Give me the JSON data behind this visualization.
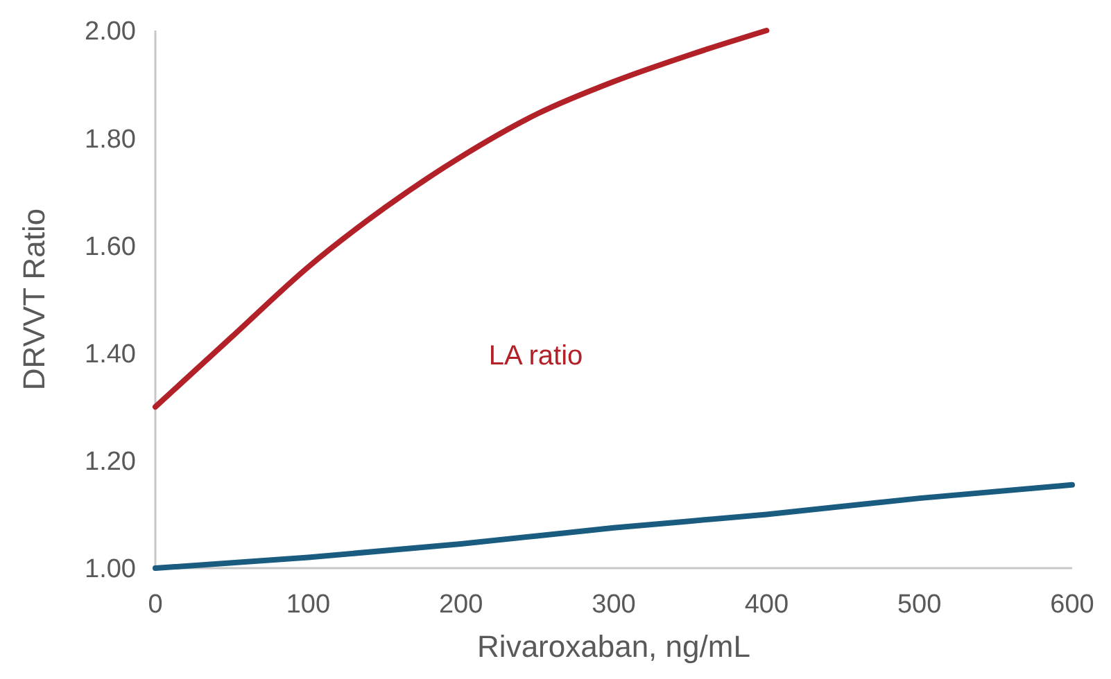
{
  "chart_data": {
    "type": "line",
    "xlabel": "Rivaroxaban, ng/mL",
    "ylabel": "DRVVT Ratio",
    "xlim": [
      0,
      600
    ],
    "xticks": [
      0,
      100,
      200,
      300,
      400,
      500,
      600
    ],
    "ylim": [
      1,
      2
    ],
    "yticks": [
      {
        "value": 1,
        "label": "1.00"
      },
      {
        "value": 1.2,
        "label": "1.20"
      },
      {
        "value": 1.4,
        "label": "1.40"
      },
      {
        "value": 1.6,
        "label": "1.60"
      },
      {
        "value": 1.8,
        "label": "1.80"
      },
      {
        "value": 2,
        "label": "2.00"
      }
    ],
    "grid": false,
    "marker": "none",
    "line_style": "solid",
    "series": [
      {
        "name": "LA ratio",
        "color": "#b22028",
        "x": [
          0,
          50,
          100,
          150,
          200,
          250,
          300,
          350,
          400
        ],
        "values": [
          1.3,
          1.43,
          1.56,
          1.67,
          1.765,
          1.845,
          1.905,
          1.955,
          2.0
        ]
      },
      {
        "color": "#1a5c80",
        "x": [
          0,
          100,
          200,
          300,
          400,
          500,
          600
        ],
        "values": [
          1.0,
          1.02,
          1.045,
          1.075,
          1.1,
          1.13,
          1.155
        ]
      }
    ]
  }
}
